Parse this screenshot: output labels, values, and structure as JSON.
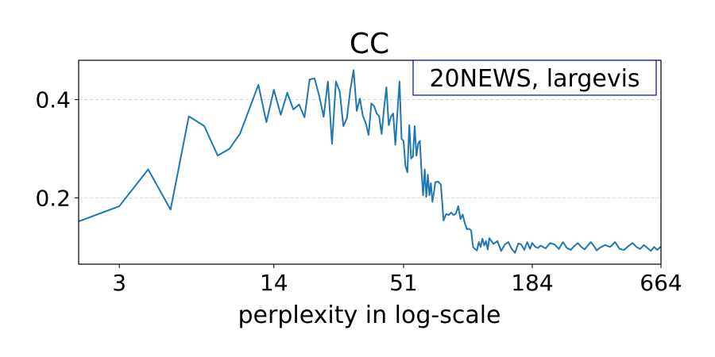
{
  "chart_data": {
    "type": "line",
    "title": "CC",
    "xlabel": "perplexity in log-scale",
    "ylabel": "",
    "x_scale": "log",
    "xlim": [
      2,
      664
    ],
    "ylim": [
      0.065,
      0.48
    ],
    "x_ticks": [
      3,
      14,
      51,
      184,
      664
    ],
    "y_ticks": [
      0.2,
      0.4
    ],
    "grid": "horizontal dashed",
    "annotation": "20NEWS, largevis",
    "annotation_position": "top-right",
    "series_color": "#1f77b4",
    "annotation_border_color": "#0000cc",
    "series": [
      {
        "x": [
          2,
          3,
          4,
          5,
          6,
          7,
          8,
          9,
          10,
          12,
          13,
          14,
          15,
          16,
          17,
          18,
          19,
          20,
          21,
          22,
          23,
          24,
          25,
          26,
          27,
          28,
          29,
          30,
          31,
          32,
          33,
          34,
          35,
          36,
          37,
          38,
          39,
          40,
          41,
          42,
          43,
          44,
          45,
          46,
          47,
          48,
          49,
          50,
          51,
          52,
          53,
          54,
          55,
          56,
          57,
          58,
          59,
          60,
          61,
          62,
          63,
          64,
          65,
          66,
          67,
          68,
          69,
          70,
          72,
          74,
          76,
          78,
          80,
          82,
          84,
          86,
          88,
          90,
          92,
          94,
          96,
          98,
          100,
          102,
          104,
          106,
          108,
          110,
          112,
          114,
          116,
          118,
          120,
          125,
          130,
          135,
          140,
          145,
          150,
          155,
          160,
          165,
          170,
          175,
          180,
          184,
          190,
          195,
          200,
          210,
          220,
          230,
          240,
          250,
          260,
          270,
          280,
          290,
          300,
          310,
          320,
          330,
          340,
          350,
          360,
          380,
          400,
          420,
          440,
          460,
          480,
          500,
          520,
          540,
          560,
          580,
          600,
          620,
          640,
          664
        ],
        "y": [
          0.152,
          0.183,
          0.258,
          0.176,
          0.366,
          0.346,
          0.286,
          0.3,
          0.331,
          0.43,
          0.354,
          0.42,
          0.369,
          0.414,
          0.38,
          0.39,
          0.364,
          0.441,
          0.443,
          0.408,
          0.365,
          0.437,
          0.31,
          0.437,
          0.416,
          0.346,
          0.362,
          0.42,
          0.46,
          0.377,
          0.402,
          0.367,
          0.352,
          0.328,
          0.392,
          0.387,
          0.372,
          0.366,
          0.33,
          0.382,
          0.425,
          0.348,
          0.365,
          0.372,
          0.308,
          0.375,
          0.437,
          0.32,
          0.316,
          0.265,
          0.252,
          0.348,
          0.28,
          0.284,
          0.346,
          0.286,
          0.31,
          0.316,
          0.255,
          0.205,
          0.258,
          0.202,
          0.247,
          0.205,
          0.23,
          0.192,
          0.21,
          0.232,
          0.233,
          0.227,
          0.154,
          0.167,
          0.165,
          0.17,
          0.165,
          0.168,
          0.183,
          0.157,
          0.166,
          0.148,
          0.136,
          0.137,
          0.134,
          0.1,
          0.096,
          0.093,
          0.11,
          0.1,
          0.117,
          0.103,
          0.112,
          0.095,
          0.118,
          0.106,
          0.112,
          0.092,
          0.105,
          0.11,
          0.096,
          0.088,
          0.107,
          0.105,
          0.094,
          0.11,
          0.096,
          0.108,
          0.1,
          0.098,
          0.103,
          0.097,
          0.108,
          0.105,
          0.096,
          0.11,
          0.098,
          0.094,
          0.102,
          0.108,
          0.1,
          0.095,
          0.103,
          0.11,
          0.102,
          0.093,
          0.098,
          0.104,
          0.1,
          0.11,
          0.096,
          0.094,
          0.102,
          0.108,
          0.1,
          0.096,
          0.104,
          0.098,
          0.092,
          0.1,
          0.094,
          0.101
        ]
      }
    ]
  }
}
